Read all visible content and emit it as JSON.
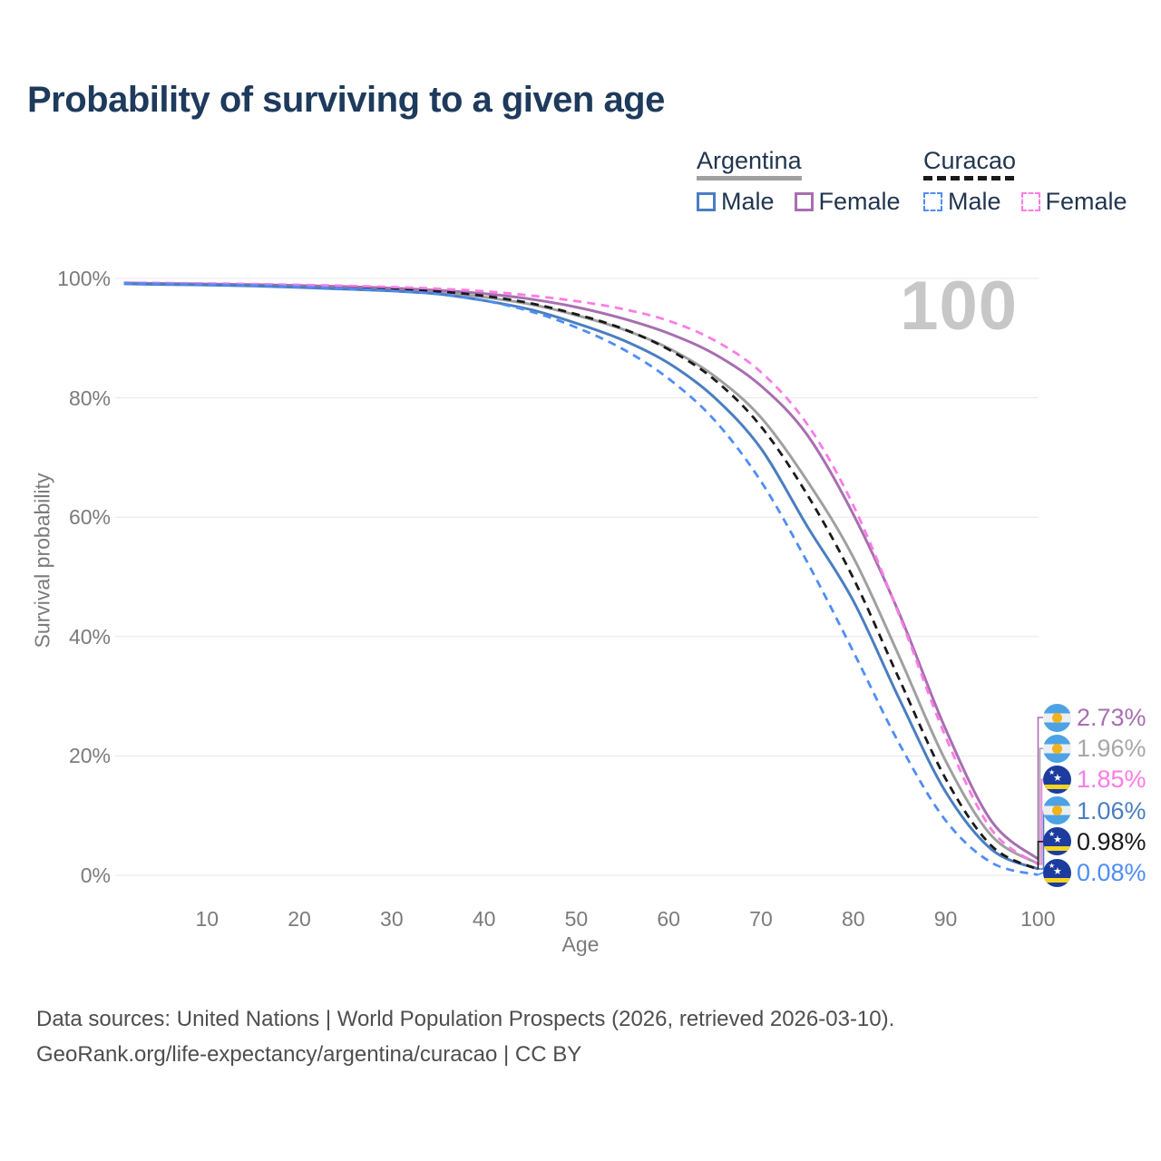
{
  "page": {
    "title": "Probability of surviving to a given age",
    "footer": {
      "line1": "Data sources: United Nations | World Population Prospects (2026, retrieved 2026-03-10).",
      "line2": "GeoRank.org/life-expectancy/argentina/curacao | CC BY"
    }
  },
  "legend": {
    "argentina": {
      "name": "Argentina",
      "underline_color": "#a0a0a0",
      "underline_style": "solid",
      "male_label": "Male",
      "female_label": "Female",
      "male_color": "#4a7ec0",
      "female_color": "#a76fb0"
    },
    "curacao": {
      "name": "Curacao",
      "underline_color": "#1a1a1a",
      "underline_style": "dashed",
      "male_label": "Male",
      "female_label": "Female",
      "male_color": "#4f8df5",
      "female_color": "#fb7ce5"
    }
  },
  "chart_data": {
    "type": "line",
    "title": "Probability of surviving to a given age",
    "xlabel": "Age",
    "ylabel": "Survival probability",
    "xlim": [
      1,
      100
    ],
    "ylim": [
      0,
      100
    ],
    "grid": "horizontal",
    "legend_position": "top-right",
    "hover_age": "100",
    "x_ticks": [
      10,
      20,
      30,
      40,
      50,
      60,
      70,
      80,
      90,
      100
    ],
    "y_ticks": [
      {
        "value": 0,
        "label": "0%"
      },
      {
        "value": 20,
        "label": "20%"
      },
      {
        "value": 40,
        "label": "40%"
      },
      {
        "value": 60,
        "label": "60%"
      },
      {
        "value": 80,
        "label": "80%"
      },
      {
        "value": 100,
        "label": "100%"
      }
    ],
    "ages": [
      1,
      5,
      10,
      15,
      20,
      25,
      30,
      35,
      40,
      45,
      50,
      55,
      60,
      65,
      70,
      75,
      80,
      85,
      90,
      95,
      100
    ],
    "series": [
      {
        "id": "argentina-both",
        "country": "Argentina",
        "sex": "Both sexes",
        "color": "#a0a0a0",
        "dashed": false,
        "end_label": "1.96%",
        "values": [
          99.18,
          99.09,
          98.99,
          98.86,
          98.66,
          98.42,
          98.14,
          97.71,
          96.88,
          95.68,
          93.85,
          91.5,
          88.3,
          83.6,
          76.7,
          66.1,
          53.3,
          36.6,
          19.2,
          6.6,
          1.96
        ]
      },
      {
        "id": "argentina-female",
        "country": "Argentina",
        "sex": "Female",
        "color": "#a76fb0",
        "dashed": false,
        "end_label": "2.73%",
        "values": [
          99.25,
          99.17,
          99.08,
          98.97,
          98.82,
          98.63,
          98.38,
          98.02,
          97.45,
          96.55,
          95.2,
          93.3,
          90.8,
          87.3,
          82.0,
          73.8,
          60.5,
          43.8,
          24.5,
          9.0,
          2.73
        ]
      },
      {
        "id": "argentina-male",
        "country": "Argentina",
        "sex": "Male",
        "color": "#4a7ec0",
        "dashed": false,
        "end_label": "1.06%",
        "values": [
          99.1,
          99.0,
          98.9,
          98.75,
          98.5,
          98.2,
          97.9,
          97.4,
          96.3,
          94.8,
          92.5,
          89.7,
          85.8,
          80.0,
          71.5,
          58.5,
          46.0,
          29.5,
          14.0,
          4.3,
          1.06
        ]
      },
      {
        "id": "curacao-both",
        "country": "Curacao",
        "sex": "Both sexes",
        "color": "#1a1a1a",
        "dashed": true,
        "end_label": "0.98%",
        "values": [
          99.25,
          99.17,
          99.07,
          98.95,
          98.77,
          98.54,
          98.26,
          97.84,
          97.08,
          95.85,
          94.0,
          91.6,
          88.1,
          83.0,
          75.2,
          63.8,
          49.8,
          32.8,
          16.2,
          4.9,
          0.98
        ]
      },
      {
        "id": "curacao-female",
        "country": "Curacao",
        "sex": "Female",
        "color": "#fb7ce5",
        "dashed": true,
        "end_label": "1.85%",
        "values": [
          99.3,
          99.24,
          99.16,
          99.06,
          98.93,
          98.77,
          98.56,
          98.28,
          97.85,
          97.15,
          96.2,
          94.9,
          92.9,
          89.6,
          84.3,
          75.6,
          62.0,
          43.5,
          23.2,
          7.6,
          1.85
        ]
      },
      {
        "id": "curacao-male",
        "country": "Curacao",
        "sex": "Male",
        "color": "#4f8df5",
        "dashed": true,
        "end_label": "0.08%",
        "values": [
          99.2,
          99.1,
          98.98,
          98.83,
          98.6,
          98.3,
          97.95,
          97.4,
          96.3,
          94.5,
          91.8,
          88.2,
          83.2,
          76.2,
          66.0,
          52.5,
          37.5,
          22.0,
          9.2,
          2.1,
          0.08
        ]
      }
    ],
    "end_labels": [
      {
        "label": "2.73%",
        "series": "argentina-female",
        "flag": "argentina",
        "color": "#a76fb0"
      },
      {
        "label": "1.96%",
        "series": "argentina-both",
        "flag": "argentina",
        "color": "#a8a8a8"
      },
      {
        "label": "1.85%",
        "series": "curacao-female",
        "flag": "curacao",
        "color": "#fb7ce5"
      },
      {
        "label": "1.06%",
        "series": "argentina-male",
        "flag": "argentina",
        "color": "#4a7ec0"
      },
      {
        "label": "0.98%",
        "series": "curacao-both",
        "flag": "curacao",
        "color": "#1a1a1a"
      },
      {
        "label": "0.08%",
        "series": "curacao-male",
        "flag": "curacao",
        "color": "#4f8df5"
      }
    ]
  }
}
